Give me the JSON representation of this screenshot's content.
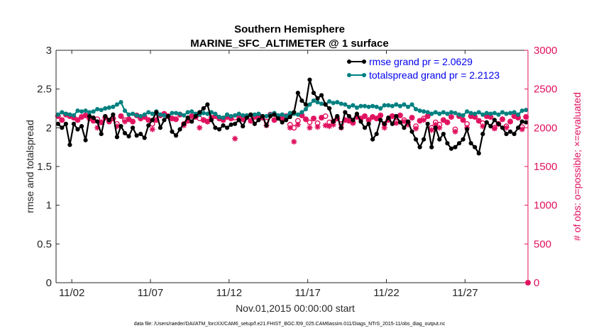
{
  "chart_data": {
    "type": "line",
    "title_line1": "Southern Hemisphere",
    "title_line2": "MARINE_SFC_ALTIMETER @ 1 surface",
    "xlabel": "Nov.01,2015 00:00:00 start",
    "ylabel": "rmse and totalspread",
    "ylabel_right": "# of obs: o=possible; ×=evaluated",
    "footer": "data file: /Users/raeder/DAI/ATM_forcXX/CAM6_setup/f.e21.FHIST_BGC.f09_025.CAM6assim.011/Diags_NTrS_2015-11/obs_diag_output.nc",
    "xlim": [
      0.5,
      30.5
    ],
    "ylim": [
      0,
      3
    ],
    "ylim_right": [
      0,
      3000
    ],
    "x_ticks": [
      1.5,
      6.5,
      11.5,
      16.5,
      21.5,
      26.5
    ],
    "x_tick_labels": [
      "11/02",
      "11/07",
      "11/12",
      "11/17",
      "11/22",
      "11/27"
    ],
    "y_ticks": [
      0,
      0.5,
      1,
      1.5,
      2,
      2.5,
      3
    ],
    "y_tick_labels": [
      "0",
      "0.5",
      "1",
      "1.5",
      "2",
      "2.5",
      "3"
    ],
    "y_right_ticks": [
      0,
      500,
      1000,
      1500,
      2000,
      2500,
      3000
    ],
    "y_right_tick_labels": [
      "0",
      "500",
      "1000",
      "1500",
      "2000",
      "2500",
      "3000"
    ],
    "legend": [
      "rmse grand pr = 2.0629",
      "totalspread grand pr = 2.2123"
    ],
    "x": [
      0.625,
      0.875,
      1.125,
      1.375,
      1.625,
      1.875,
      2.125,
      2.375,
      2.625,
      2.875,
      3.125,
      3.375,
      3.625,
      3.875,
      4.125,
      4.375,
      4.625,
      4.875,
      5.125,
      5.375,
      5.625,
      5.875,
      6.125,
      6.375,
      6.625,
      6.875,
      7.125,
      7.375,
      7.625,
      7.875,
      8.125,
      8.375,
      8.625,
      8.875,
      9.125,
      9.375,
      9.625,
      9.875,
      10.125,
      10.375,
      10.625,
      10.875,
      11.125,
      11.375,
      11.625,
      11.875,
      12.125,
      12.375,
      12.625,
      12.875,
      13.125,
      13.375,
      13.625,
      13.875,
      14.125,
      14.375,
      14.625,
      14.875,
      15.125,
      15.375,
      15.625,
      15.875,
      16.125,
      16.375,
      16.625,
      16.875,
      17.125,
      17.375,
      17.625,
      17.875,
      18.125,
      18.375,
      18.625,
      18.875,
      19.125,
      19.375,
      19.625,
      19.875,
      20.125,
      20.375,
      20.625,
      20.875,
      21.125,
      21.375,
      21.625,
      21.875,
      22.125,
      22.375,
      22.625,
      22.875,
      23.125,
      23.375,
      23.625,
      23.875,
      24.125,
      24.375,
      24.625,
      24.875,
      25.125,
      25.375,
      25.625,
      25.875,
      26.125,
      26.375,
      26.625,
      26.875,
      27.125,
      27.375,
      27.625,
      27.875,
      28.125,
      28.375,
      28.625,
      28.875,
      29.125,
      29.375,
      29.625,
      29.875,
      30.125,
      30.375
    ],
    "series": [
      {
        "name": "rmse",
        "color": "#000000",
        "marker": "filled-dot",
        "values": [
          2.05,
          2.0,
          2.05,
          1.78,
          2.05,
          1.98,
          2.02,
          1.84,
          2.15,
          2.13,
          2.08,
          1.92,
          2.15,
          2.1,
          2.17,
          1.88,
          2.02,
          1.93,
          1.89,
          2.0,
          1.9,
          1.92,
          1.87,
          2.03,
          2.1,
          2.2,
          2.0,
          2.1,
          2.15,
          1.95,
          1.9,
          1.98,
          2.05,
          2.13,
          2.08,
          2.15,
          2.2,
          2.25,
          2.3,
          2.1,
          2.0,
          1.98,
          2.03,
          2.0,
          2.04,
          2.05,
          2.1,
          2.02,
          2.13,
          2.17,
          2.05,
          2.1,
          2.15,
          2.03,
          2.15,
          2.17,
          2.12,
          2.07,
          2.1,
          2.14,
          2.2,
          2.45,
          2.35,
          2.3,
          2.62,
          2.45,
          2.38,
          2.42,
          2.3,
          2.25,
          2.08,
          2.15,
          2.0,
          2.2,
          2.15,
          2.1,
          2.18,
          2.08,
          2.0,
          2.05,
          1.85,
          1.92,
          2.1,
          2.05,
          2.13,
          2.05,
          2.15,
          2.07,
          2.0,
          2.08,
          1.95,
          1.85,
          1.75,
          1.85,
          2.05,
          1.75,
          2.0,
          1.85,
          1.92,
          1.8,
          1.73,
          1.75,
          1.8,
          1.85,
          1.98,
          1.8,
          1.75,
          1.67,
          1.92,
          2.07,
          2.02,
          2.1,
          2.05,
          2.0,
          1.92,
          1.95,
          1.92,
          2.0,
          2.08,
          2.07
        ]
      },
      {
        "name": "totalspread",
        "color": "#008080",
        "marker": "filled-dot",
        "values": [
          2.17,
          2.2,
          2.18,
          2.17,
          2.16,
          2.22,
          2.21,
          2.22,
          2.2,
          2.21,
          2.24,
          2.23,
          2.25,
          2.26,
          2.27,
          2.3,
          2.33,
          2.22,
          2.17,
          2.18,
          2.16,
          2.15,
          2.17,
          2.2,
          2.18,
          2.21,
          2.17,
          2.16,
          2.15,
          2.19,
          2.19,
          2.18,
          2.16,
          2.2,
          2.21,
          2.18,
          2.17,
          2.19,
          2.18,
          2.2,
          2.18,
          2.14,
          2.13,
          2.17,
          2.15,
          2.16,
          2.18,
          2.16,
          2.16,
          2.16,
          2.17,
          2.18,
          2.15,
          2.15,
          2.17,
          2.19,
          2.16,
          2.17,
          2.15,
          2.19,
          2.18,
          2.17,
          2.2,
          2.24,
          2.3,
          2.35,
          2.33,
          2.31,
          2.3,
          2.34,
          2.32,
          2.33,
          2.31,
          2.3,
          2.27,
          2.29,
          2.26,
          2.28,
          2.28,
          2.27,
          2.28,
          2.27,
          2.25,
          2.29,
          2.29,
          2.28,
          2.3,
          2.28,
          2.3,
          2.27,
          2.3,
          2.24,
          2.22,
          2.21,
          2.2,
          2.18,
          2.2,
          2.18,
          2.2,
          2.18,
          2.2,
          2.19,
          2.17,
          2.16,
          2.21,
          2.19,
          2.18,
          2.2,
          2.17,
          2.19,
          2.18,
          2.19,
          2.17,
          2.2,
          2.18,
          2.19,
          2.2,
          2.17,
          2.22,
          2.23
        ]
      },
      {
        "name": "nposs",
        "color": "#e0105e",
        "marker": "circle",
        "values": [
          2150,
          2100,
          2170,
          2150,
          2130,
          2100,
          2140,
          2160,
          2120,
          2090,
          2110,
          2070,
          2130,
          2080,
          2120,
          2050,
          2150,
          2100,
          2110,
          2080,
          2160,
          2120,
          2140,
          2100,
          2050,
          2100,
          2160,
          2180,
          2150,
          2120,
          2110,
          2170,
          2050,
          2090,
          2150,
          2140,
          2120,
          2100,
          2080,
          2130,
          2150,
          2120,
          2100,
          2140,
          2120,
          2130,
          2160,
          2110,
          2150,
          2090,
          2140,
          2160,
          2130,
          2080,
          2170,
          2100,
          2150,
          2120,
          2150,
          2040,
          2000,
          2090,
          2160,
          2110,
          2070,
          2120,
          2060,
          2130,
          2150,
          2070,
          2080,
          2120,
          2050,
          2100,
          2090,
          2070,
          2140,
          2120,
          2150,
          2100,
          2140,
          2120,
          2160,
          2050,
          2100,
          2150,
          2080,
          2160,
          2100,
          2070,
          2130,
          2020,
          2090,
          2120,
          2150,
          2000,
          2070,
          2040,
          2100,
          2070,
          2140,
          1980,
          2150,
          2100,
          2050,
          2150,
          2140,
          2090,
          2060,
          2150,
          2140,
          2000,
          2050,
          2110,
          2020,
          2080,
          2150,
          2130,
          2010,
          2140
        ]
      },
      {
        "name": "nused",
        "color": "#e0105e",
        "marker": "asterisk",
        "values": [
          2150,
          2100,
          2170,
          2150,
          2130,
          2100,
          2140,
          2160,
          2120,
          2090,
          2000,
          2070,
          2130,
          2080,
          2120,
          2020,
          2150,
          2080,
          2110,
          2080,
          2160,
          2120,
          2140,
          2100,
          1980,
          2100,
          2160,
          2180,
          2150,
          2120,
          2110,
          2170,
          2030,
          2090,
          2150,
          2140,
          2000,
          2100,
          2080,
          2130,
          2150,
          2120,
          2100,
          2140,
          2120,
          1860,
          2160,
          2110,
          2150,
          2090,
          2140,
          2160,
          2130,
          2030,
          2170,
          2100,
          2150,
          2120,
          2150,
          2000,
          1820,
          2040,
          2160,
          2110,
          2000,
          2120,
          2010,
          2130,
          2030,
          2020,
          2040,
          2120,
          2000,
          2100,
          2090,
          2060,
          2140,
          2120,
          2150,
          2100,
          2140,
          2120,
          2160,
          2000,
          2100,
          2150,
          2060,
          2160,
          2080,
          2040,
          2130,
          1990,
          2090,
          2100,
          2150,
          1970,
          2040,
          2000,
          2100,
          2070,
          2140,
          1950,
          2150,
          2100,
          2000,
          2150,
          2140,
          2090,
          2020,
          2150,
          2140,
          1990,
          2050,
          2110,
          2000,
          2080,
          2150,
          2130,
          1980,
          2140
        ]
      }
    ],
    "end_markers_right": [
      {
        "x": 30.5,
        "y": 0,
        "marker": "circle"
      },
      {
        "x": 30.5,
        "y": 0,
        "marker": "asterisk"
      }
    ]
  }
}
